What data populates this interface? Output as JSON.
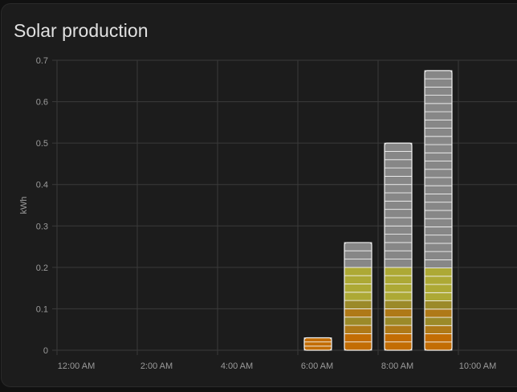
{
  "card": {
    "title": "Solar production"
  },
  "chart_data": {
    "type": "bar",
    "title": "Solar production",
    "ylabel": "kWh",
    "xlabel": "",
    "ylim": [
      0,
      0.7
    ],
    "y_ticks": [
      "0",
      "0.1",
      "0.2",
      "0.3",
      "0.4",
      "0.5",
      "0.6",
      "0.7"
    ],
    "x_ticks": [
      "12:00 AM",
      "2:00 AM",
      "4:00 AM",
      "6:00 AM",
      "8:00 AM",
      "10:00 AM"
    ],
    "grid": true,
    "bars": [
      {
        "hour": "6:00 AM",
        "value": 0.03
      },
      {
        "hour": "7:00 AM",
        "value": 0.26
      },
      {
        "hour": "8:00 AM",
        "value": 0.5
      },
      {
        "hour": "9:00 AM",
        "value": 0.675
      }
    ],
    "colors": {
      "orange": "#e07b00",
      "yellow": "#c7c23a",
      "gray": "#9a9a9a",
      "outline": "#f2f2f2",
      "grid": "#3a3a3a"
    }
  }
}
